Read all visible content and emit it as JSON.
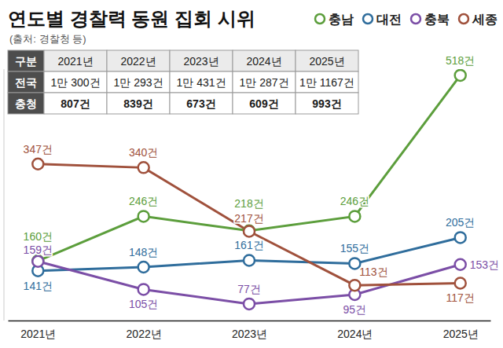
{
  "chart_data": {
    "type": "line",
    "title": "연도별 경찰력 동원 집회 시위",
    "subtitle": "(출처: 경찰청 등)",
    "categories": [
      "2021년",
      "2022년",
      "2023년",
      "2024년",
      "2025년"
    ],
    "series": [
      {
        "name": "충남",
        "color": "#5c9e3c",
        "values": [
          160,
          246,
          218,
          246,
          518
        ],
        "value_labels": [
          "160건",
          "246건",
          "218건",
          "246건",
          "518건"
        ]
      },
      {
        "name": "대전",
        "color": "#2f6d9c",
        "values": [
          141,
          148,
          161,
          155,
          205
        ],
        "value_labels": [
          "141건",
          "148건",
          "161건",
          "155건",
          "205건"
        ]
      },
      {
        "name": "충북",
        "color": "#7b4ea6",
        "values": [
          159,
          105,
          77,
          95,
          153
        ],
        "value_labels": [
          "159건",
          "105건",
          "77건",
          "95건",
          "153건"
        ]
      },
      {
        "name": "세종",
        "color": "#a0513c",
        "values": [
          347,
          340,
          217,
          113,
          117
        ],
        "value_labels": [
          "347건",
          "340건",
          "217건",
          "113건",
          "117건"
        ]
      }
    ],
    "ylim": [
      45,
      530
    ],
    "tick_labels": "x",
    "data_labels": true,
    "legend": "top-right",
    "marker": "circle",
    "grid": false
  },
  "table": {
    "header": [
      "구분",
      "2021년",
      "2022년",
      "2023년",
      "2024년",
      "2025년"
    ],
    "rows": [
      [
        "전국",
        "1만 300건",
        "1만 293건",
        "1만 431건",
        "1만 287건",
        "1만 1167건"
      ],
      [
        "충청",
        "807건",
        "839건",
        "673건",
        "609건",
        "993건"
      ]
    ]
  }
}
